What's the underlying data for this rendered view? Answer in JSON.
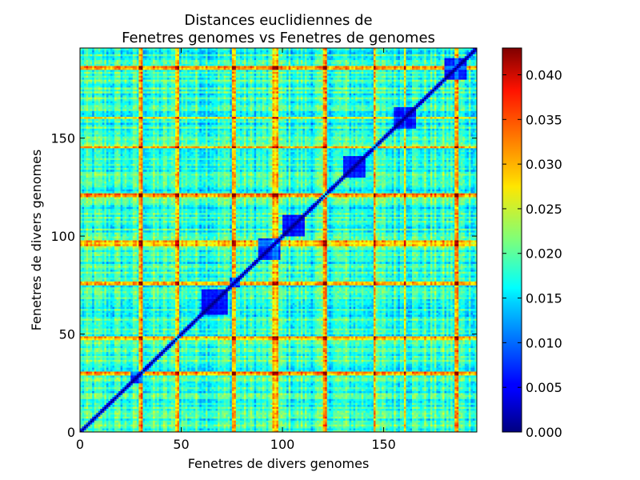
{
  "chart_data": {
    "type": "heatmap",
    "title_line1": "Distances euclidiennes de",
    "title_line2": "Fenetres genomes vs Fenetres de genomes",
    "xlabel": "Fenetres de divers genomes",
    "ylabel": "Fenetres de divers genomes",
    "n": 196,
    "xlim": [
      0,
      196
    ],
    "ylim": [
      0,
      196
    ],
    "x_ticks": [
      0,
      50,
      100,
      150
    ],
    "y_ticks": [
      0,
      50,
      100,
      150
    ],
    "colormap": "jet",
    "color_range": [
      0.0,
      0.043
    ],
    "colorbar_ticks": [
      "0.000",
      "0.005",
      "0.010",
      "0.015",
      "0.020",
      "0.025",
      "0.030",
      "0.035",
      "0.040"
    ],
    "colorbar_tick_values": [
      0.0,
      0.005,
      0.01,
      0.015,
      0.02,
      0.025,
      0.03,
      0.035,
      0.04
    ],
    "diagonal_value": 0.0,
    "typical_value": 0.018,
    "high_value_rows_cols": [
      29,
      30,
      47,
      48,
      75,
      76,
      95,
      96,
      97,
      120,
      121,
      145,
      160,
      185,
      186
    ],
    "low_value_blocks": [
      [
        25,
        30
      ],
      [
        60,
        72
      ],
      [
        74,
        78
      ],
      [
        88,
        98
      ],
      [
        100,
        110
      ],
      [
        130,
        140
      ],
      [
        155,
        165
      ],
      [
        180,
        190
      ]
    ]
  }
}
